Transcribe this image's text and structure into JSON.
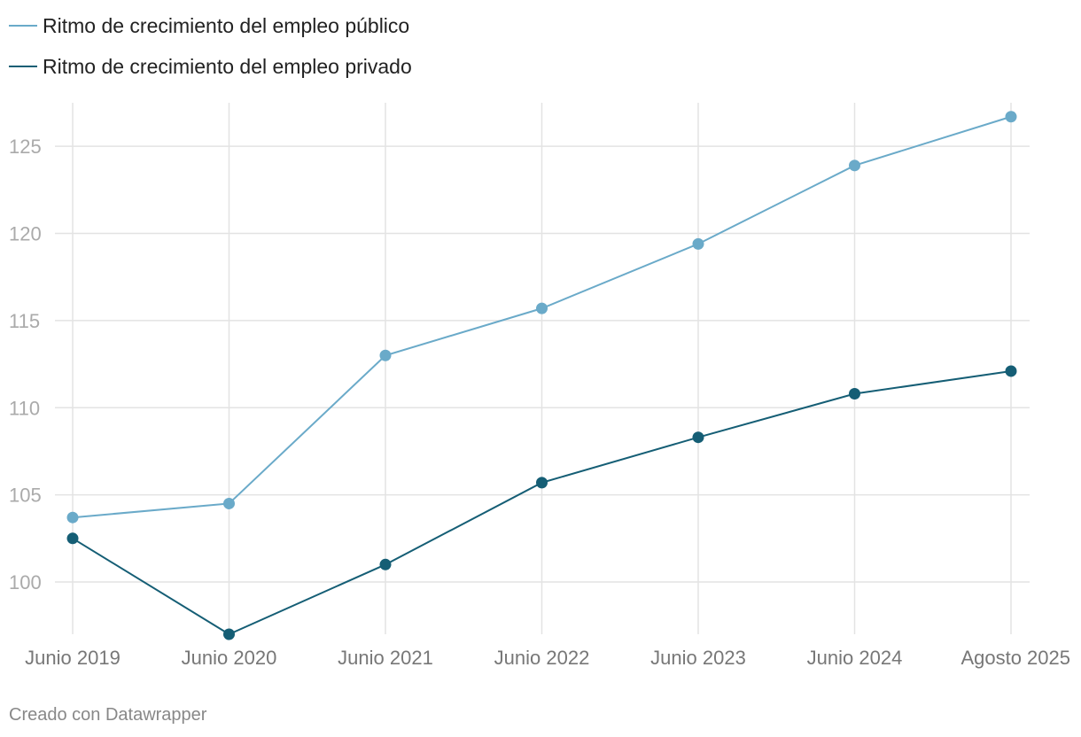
{
  "chart_data": {
    "type": "line",
    "categories": [
      "Junio 2019",
      "Junio 2020",
      "Junio 2021",
      "Junio 2022",
      "Junio 2023",
      "Junio 2024",
      "Agosto 2025"
    ],
    "series": [
      {
        "name": "Ritmo de crecimiento del empleo público",
        "color": "#6aaac9",
        "values": [
          103.7,
          104.5,
          113.0,
          115.7,
          119.4,
          123.9,
          126.7
        ]
      },
      {
        "name": "Ritmo de crecimiento del empleo privado",
        "color": "#155e75",
        "values": [
          102.5,
          97.0,
          101.0,
          105.7,
          108.3,
          110.8,
          112.1
        ]
      }
    ],
    "y_ticks": [
      100,
      105,
      110,
      115,
      120,
      125
    ],
    "ylim": [
      97,
      127.5
    ],
    "grid": true,
    "legend": "top-left"
  },
  "footer": "Creado con Datawrapper"
}
